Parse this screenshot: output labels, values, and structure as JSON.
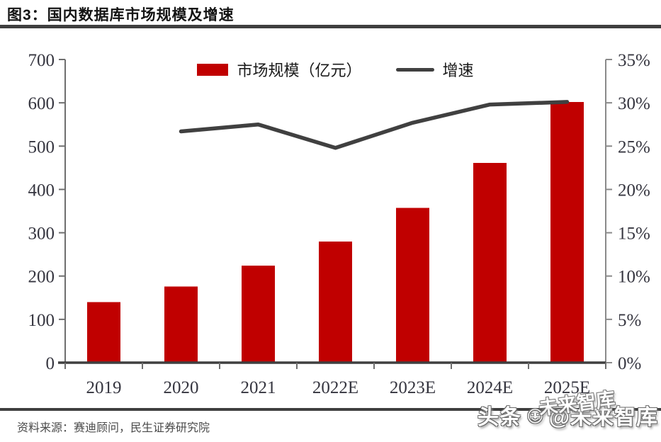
{
  "header": {
    "title": "图3：国内数据库市场规模及增速"
  },
  "footer": {
    "source": "资料来源：赛迪顾问，民生证券研究院"
  },
  "watermark": {
    "prefix": "头条",
    "face_icon": "☺",
    "suffix": "@未来智库",
    "ghost_text": "未来智库"
  },
  "chart_data": {
    "type": "bar+line combo",
    "categories": [
      "2019",
      "2020",
      "2021",
      "2022E",
      "2023E",
      "2024E",
      "2025E"
    ],
    "series": [
      {
        "name": "市场规模（亿元）",
        "type": "bar",
        "axis": "left",
        "color": "#c00000",
        "values": [
          140,
          176,
          224,
          280,
          357,
          461,
          602
        ]
      },
      {
        "name": "增速",
        "type": "line",
        "axis": "right",
        "color": "#404040",
        "values": [
          null,
          26.7,
          27.5,
          24.8,
          27.7,
          29.8,
          30.1
        ]
      }
    ],
    "left_axis": {
      "min": 0,
      "max": 700,
      "step": 100,
      "tick_labels": [
        "0",
        "100",
        "200",
        "300",
        "400",
        "500",
        "600",
        "700"
      ]
    },
    "right_axis": {
      "min": 0,
      "max": 35,
      "step": 5,
      "tick_labels": [
        "0%",
        "5%",
        "10%",
        "15%",
        "20%",
        "25%",
        "30%",
        "35%"
      ]
    },
    "legend_position": "top-center",
    "grid": "off"
  }
}
